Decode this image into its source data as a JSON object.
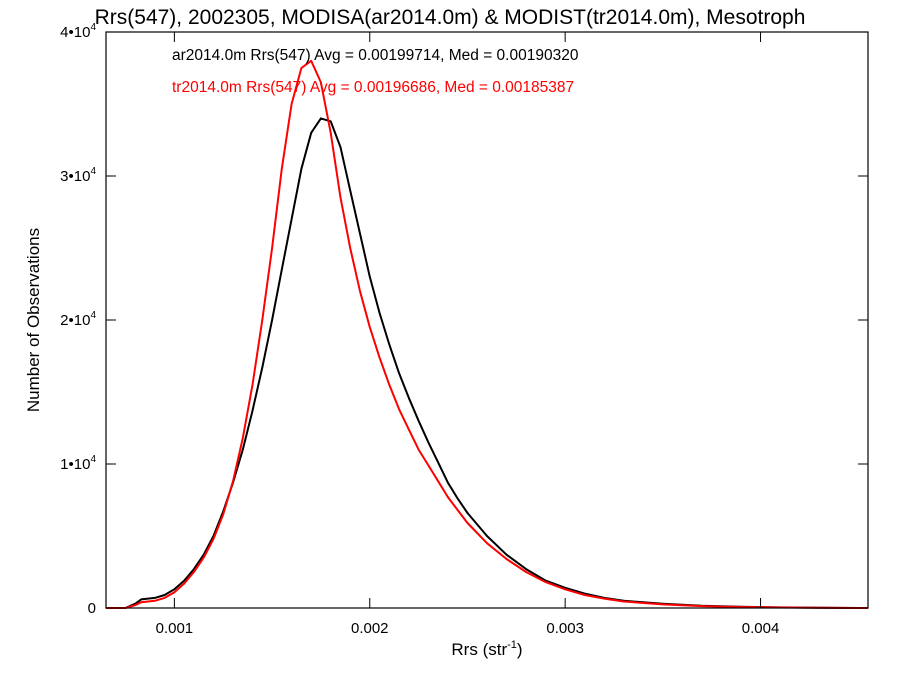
{
  "chart_data": {
    "type": "line",
    "title": "Rrs(547), 2002305, MODISA(ar2014.0m) & MODIST(tr2014.0m), Mesotroph",
    "xlabel": "Rrs (str",
    "xlabel_sup": "-1",
    "xlabel_end": ")",
    "ylabel": "Number of Observations",
    "xlim": [
      0.00065,
      0.00455
    ],
    "ylim": [
      0,
      40000
    ],
    "x_ticks": [
      {
        "value": 0.001,
        "label": "0.001"
      },
      {
        "value": 0.002,
        "label": "0.002"
      },
      {
        "value": 0.003,
        "label": "0.003"
      },
      {
        "value": 0.004,
        "label": "0.004"
      }
    ],
    "y_ticks": [
      {
        "value": 0,
        "mant": "0",
        "exp": ""
      },
      {
        "value": 10000,
        "mant": "1•10",
        "exp": "4"
      },
      {
        "value": 20000,
        "mant": "2•10",
        "exp": "4"
      },
      {
        "value": 30000,
        "mant": "3•10",
        "exp": "4"
      },
      {
        "value": 40000,
        "mant": "4•10",
        "exp": "4"
      }
    ],
    "grid": false,
    "legend_position": "top-left",
    "series": [
      {
        "name": "ar2014.0m Rrs(547) Avg = 0.00199714, Med = 0.00190320",
        "color": "#000000",
        "x": [
          0.00065,
          0.00075,
          0.0008,
          0.00083,
          0.0009,
          0.00095,
          0.001,
          0.00105,
          0.0011,
          0.00115,
          0.0012,
          0.00125,
          0.0013,
          0.00135,
          0.0014,
          0.00145,
          0.0015,
          0.00155,
          0.0016,
          0.00165,
          0.0017,
          0.00175,
          0.0018,
          0.00185,
          0.0019,
          0.00195,
          0.002,
          0.00205,
          0.0021,
          0.00215,
          0.0022,
          0.00225,
          0.0023,
          0.00235,
          0.0024,
          0.00245,
          0.0025,
          0.0026,
          0.0027,
          0.0028,
          0.0029,
          0.003,
          0.0031,
          0.0032,
          0.0033,
          0.0035,
          0.0037,
          0.0039,
          0.0041,
          0.0043,
          0.0045,
          0.00455
        ],
        "y": [
          0,
          0,
          300,
          600,
          700,
          900,
          1300,
          1900,
          2700,
          3700,
          5000,
          6700,
          8700,
          11000,
          13700,
          16700,
          20000,
          23500,
          27000,
          30500,
          33000,
          34000,
          33800,
          32000,
          29000,
          26000,
          23000,
          20500,
          18300,
          16300,
          14600,
          13000,
          11500,
          10100,
          8700,
          7600,
          6600,
          5000,
          3700,
          2700,
          1900,
          1400,
          1000,
          700,
          500,
          300,
          150,
          80,
          40,
          20,
          0,
          0
        ]
      },
      {
        "name": "tr2014.0m Rrs(547) Avg = 0.00196686, Med = 0.00185387",
        "color": "#ff0000",
        "x": [
          0.00065,
          0.00075,
          0.0008,
          0.00083,
          0.0009,
          0.00095,
          0.001,
          0.00105,
          0.0011,
          0.00115,
          0.0012,
          0.00125,
          0.0013,
          0.00135,
          0.0014,
          0.00145,
          0.0015,
          0.00155,
          0.0016,
          0.00165,
          0.0017,
          0.00175,
          0.0018,
          0.00185,
          0.0019,
          0.00195,
          0.002,
          0.00205,
          0.0021,
          0.00215,
          0.0022,
          0.00225,
          0.0023,
          0.00235,
          0.0024,
          0.00245,
          0.0025,
          0.0026,
          0.0027,
          0.0028,
          0.0029,
          0.003,
          0.0031,
          0.0032,
          0.0033,
          0.0035,
          0.0037,
          0.0039,
          0.0041,
          0.0043,
          0.0045,
          0.00455
        ],
        "y": [
          0,
          0,
          200,
          400,
          500,
          700,
          1100,
          1700,
          2500,
          3500,
          4800,
          6500,
          8800,
          11800,
          15500,
          20000,
          25000,
          30500,
          35000,
          37500,
          38000,
          36500,
          33000,
          28500,
          25000,
          22000,
          19500,
          17400,
          15500,
          13800,
          12400,
          11000,
          9900,
          8800,
          7700,
          6800,
          5900,
          4500,
          3400,
          2500,
          1800,
          1300,
          900,
          650,
          450,
          250,
          130,
          70,
          35,
          15,
          0,
          0
        ]
      }
    ]
  }
}
